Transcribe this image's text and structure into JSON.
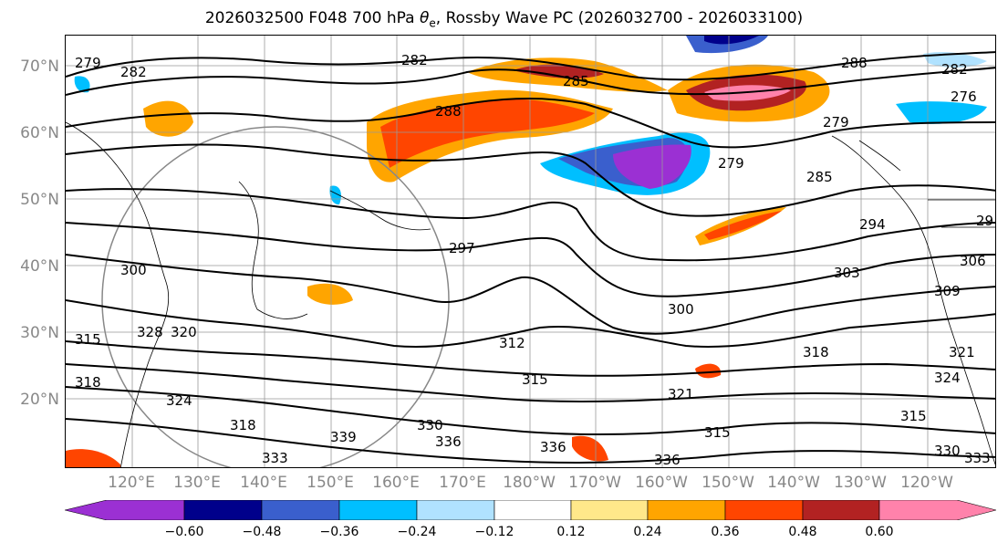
{
  "title": {
    "prefix": "2026032500 F048 700 hPa ",
    "theta": "θ",
    "theta_sub": "e",
    "suffix": ", Rossby Wave PC (2026032700 - 2026033100)"
  },
  "lat_labels": [
    "70°N",
    "60°N",
    "50°N",
    "40°N",
    "30°N",
    "20°N"
  ],
  "lon_labels": [
    "120°E",
    "130°E",
    "140°E",
    "150°E",
    "160°E",
    "170°E",
    "180°W",
    "170°W",
    "160°W",
    "150°W",
    "140°W",
    "130°W",
    "120°W"
  ],
  "colorbar": {
    "ticks": [
      "−0.60",
      "−0.48",
      "−0.36",
      "−0.24",
      "−0.12",
      "0.12",
      "0.24",
      "0.36",
      "0.48",
      "0.60"
    ],
    "colors": [
      "#9b30d3",
      "#00008b",
      "#3a5fcd",
      "#00bfff",
      "#b0e2ff",
      "#ffffff",
      "#ffe88a",
      "#ffa500",
      "#ff4500",
      "#b22222",
      "#ff82ab"
    ]
  },
  "contour_labels": [
    {
      "text": "279"
    },
    {
      "text": "282"
    },
    {
      "text": "282"
    },
    {
      "text": "285"
    },
    {
      "text": "288"
    },
    {
      "text": "288"
    },
    {
      "text": "282"
    },
    {
      "text": "276"
    },
    {
      "text": "279"
    },
    {
      "text": "279"
    },
    {
      "text": "285"
    },
    {
      "text": "294"
    },
    {
      "text": "29"
    },
    {
      "text": "297"
    },
    {
      "text": "303"
    },
    {
      "text": "300"
    },
    {
      "text": "300"
    },
    {
      "text": "306"
    },
    {
      "text": "309"
    },
    {
      "text": "312"
    },
    {
      "text": "315"
    },
    {
      "text": "315"
    },
    {
      "text": "318"
    },
    {
      "text": "318"
    },
    {
      "text": "321"
    },
    {
      "text": "324"
    },
    {
      "text": "324"
    },
    {
      "text": "315"
    },
    {
      "text": "333"
    },
    {
      "text": "330"
    },
    {
      "text": "333"
    },
    {
      "text": "336"
    },
    {
      "text": "336"
    },
    {
      "text": "336"
    },
    {
      "text": "339"
    },
    {
      "text": "330"
    },
    {
      "text": "321"
    },
    {
      "text": "318"
    },
    {
      "text": "328"
    },
    {
      "text": "320"
    },
    {
      "text": "315"
    }
  ]
}
